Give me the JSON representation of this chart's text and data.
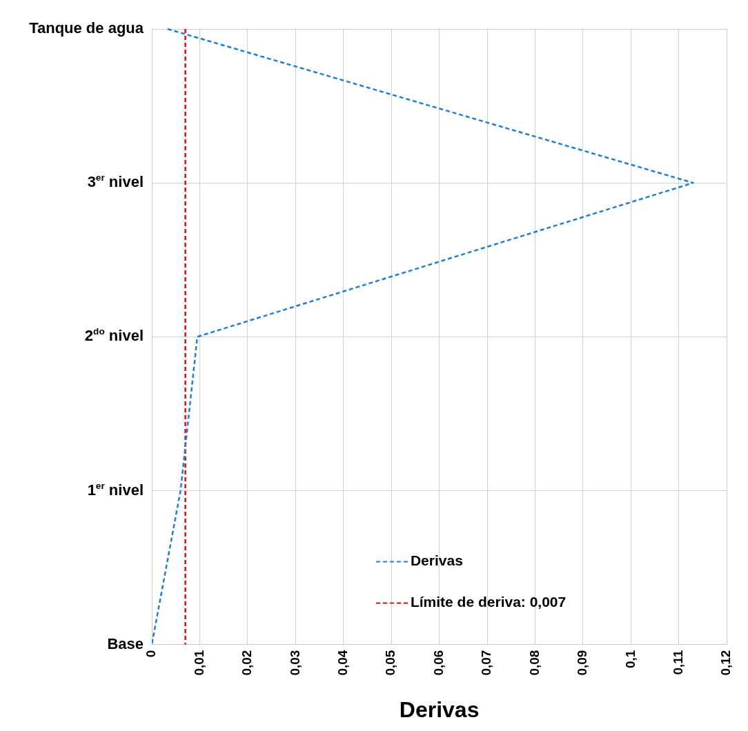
{
  "chart_data": {
    "type": "line",
    "orientation": "horizontal",
    "xlabel": "Derivas",
    "categories": [
      "Tanque de agua",
      "3$^{er}$ nivel",
      "2$^{do}$ nivel",
      "1$^{er}$ nivel",
      "Base"
    ],
    "series": [
      {
        "name": "Derivas",
        "color": "#1f7ed0",
        "values": [
          0.0033,
          0.113,
          0.0095,
          0.006,
          0
        ]
      },
      {
        "name": "Límite de deriva: 0,007",
        "color": "#ff0000",
        "values": [
          0.007,
          0.007,
          0.007,
          0.007,
          0.007
        ]
      }
    ],
    "xlim": [
      0,
      0.12
    ],
    "xticks": [
      0,
      {
        "value": 0.01,
        "label": "0,01"
      },
      {
        "value": 0.02,
        "label": "0,02"
      },
      {
        "value": 0.03,
        "label": "0,03"
      },
      {
        "value": 0.04,
        "label": "0,04"
      },
      {
        "value": 0.05,
        "label": "0,05"
      },
      {
        "value": 0.06,
        "label": "0,06"
      },
      {
        "value": 0.07,
        "label": "0,07"
      },
      {
        "value": 0.08,
        "label": "0,08"
      },
      {
        "value": 0.09,
        "label": "0,09"
      },
      {
        "value": 0.1,
        "label": "0,1"
      },
      {
        "value": 0.11,
        "label": "0,11"
      },
      {
        "value": 0.12,
        "label": "0,12"
      }
    ],
    "grid": true,
    "legend": "bottom right",
    "marker": "none",
    "line_style": "dashed"
  }
}
